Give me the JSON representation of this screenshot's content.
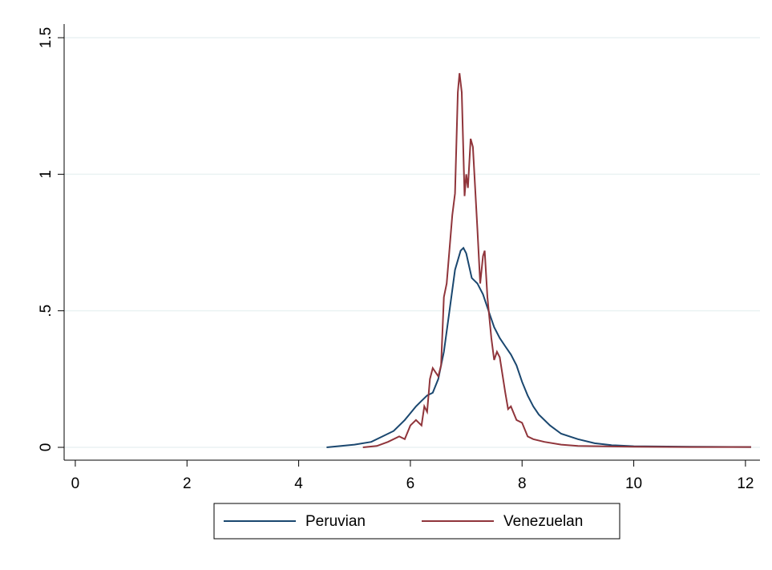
{
  "chart_data": {
    "type": "line",
    "xlim": [
      -0.2,
      12.26
    ],
    "xticks": [
      0,
      2,
      4,
      6,
      8,
      10,
      12
    ],
    "ylim": [
      -0.047,
      1.55
    ],
    "yticks": [
      0,
      {
        "value": 0.5,
        "label": ".5"
      },
      1,
      1.5
    ],
    "grid": true,
    "legend": "bottom",
    "series": [
      {
        "name": "Peruvian",
        "color": "#1a476f",
        "x": [
          4.5,
          5.0,
          5.3,
          5.5,
          5.7,
          5.9,
          6.1,
          6.2,
          6.3,
          6.4,
          6.5,
          6.6,
          6.7,
          6.8,
          6.9,
          6.95,
          7.0,
          7.1,
          7.15,
          7.2,
          7.3,
          7.4,
          7.5,
          7.6,
          7.7,
          7.8,
          7.9,
          8.0,
          8.1,
          8.2,
          8.3,
          8.5,
          8.7,
          9.0,
          9.3,
          9.6,
          10,
          11,
          12.1
        ],
        "values": [
          0,
          0.01,
          0.02,
          0.04,
          0.06,
          0.1,
          0.15,
          0.17,
          0.19,
          0.2,
          0.25,
          0.35,
          0.5,
          0.65,
          0.72,
          0.73,
          0.71,
          0.62,
          0.61,
          0.6,
          0.56,
          0.5,
          0.44,
          0.4,
          0.37,
          0.34,
          0.3,
          0.24,
          0.19,
          0.15,
          0.12,
          0.08,
          0.05,
          0.03,
          0.015,
          0.008,
          0.004,
          0.002,
          0.001
        ]
      },
      {
        "name": "Venezuelan",
        "color": "#90353b",
        "x": [
          5.15,
          5.4,
          5.6,
          5.8,
          5.9,
          6.0,
          6.1,
          6.2,
          6.25,
          6.3,
          6.35,
          6.4,
          6.5,
          6.55,
          6.6,
          6.65,
          6.75,
          6.8,
          6.85,
          6.88,
          6.92,
          6.97,
          7.0,
          7.03,
          7.08,
          7.12,
          7.2,
          7.25,
          7.3,
          7.33,
          7.38,
          7.45,
          7.5,
          7.55,
          7.6,
          7.7,
          7.75,
          7.8,
          7.9,
          8.0,
          8.1,
          8.2,
          8.4,
          8.7,
          9.0,
          10,
          11,
          12.1
        ],
        "values": [
          0,
          0.005,
          0.02,
          0.04,
          0.03,
          0.08,
          0.1,
          0.08,
          0.15,
          0.13,
          0.25,
          0.29,
          0.26,
          0.3,
          0.55,
          0.6,
          0.85,
          0.93,
          1.3,
          1.37,
          1.3,
          0.92,
          1.0,
          0.95,
          1.13,
          1.1,
          0.8,
          0.6,
          0.7,
          0.72,
          0.55,
          0.4,
          0.32,
          0.35,
          0.33,
          0.2,
          0.14,
          0.15,
          0.1,
          0.09,
          0.04,
          0.03,
          0.02,
          0.01,
          0.005,
          0.002,
          0.001,
          0.001
        ]
      }
    ]
  }
}
